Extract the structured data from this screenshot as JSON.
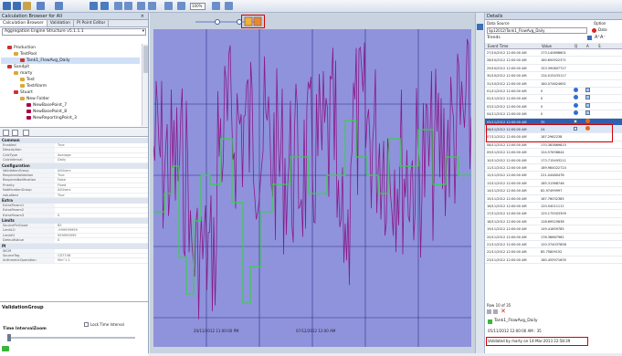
{
  "toolbar": {
    "zoom": "100%"
  },
  "left_panel": {
    "title": "Calculation Browser for All",
    "tabs": [
      "Calculation Browser",
      "Validation",
      "PI Point Editor"
    ],
    "selector": "Aggregation Engine Structure v5.1.1.1",
    "tree": [
      {
        "label": "Production",
        "indent": 1,
        "color": "#c33"
      },
      {
        "label": "TestPool",
        "indent": 2,
        "color": "#d9a93a"
      },
      {
        "label": "Tank1_FlowAvg_Daily",
        "indent": 3,
        "color": "#c33",
        "selected": true
      },
      {
        "label": "Sandpit",
        "indent": 1,
        "color": "#c33"
      },
      {
        "label": "marty",
        "indent": 2,
        "color": "#d9a93a"
      },
      {
        "label": "Test",
        "indent": 3,
        "color": "#d9a93a"
      },
      {
        "label": "TestAlarm",
        "indent": 3,
        "color": "#d9a93a"
      },
      {
        "label": "Stuart",
        "indent": 2,
        "color": "#c33"
      },
      {
        "label": "New Folder",
        "indent": 3,
        "color": "#d9a93a"
      },
      {
        "label": "NewBasePoint_7",
        "indent": 4,
        "color": "#a04"
      },
      {
        "label": "NewBasePoint_8",
        "indent": 4,
        "color": "#a04"
      },
      {
        "label": "NewReportingPoint_3",
        "indent": 4,
        "color": "#a04"
      }
    ],
    "properties": [
      {
        "cat": "Common"
      },
      {
        "k": "Enabled",
        "v": "True"
      },
      {
        "k": "Description",
        "v": ""
      },
      {
        "k": "CalcType",
        "v": "Average"
      },
      {
        "k": "CalcInterval",
        "v": "Daily"
      },
      {
        "cat": "Configuration"
      },
      {
        "k": "ValidationGroup",
        "v": "AllUsers"
      },
      {
        "k": "RequiresValidation",
        "v": "True"
      },
      {
        "k": "RequiresNotification",
        "v": "False"
      },
      {
        "k": "Priority",
        "v": "Fixed"
      },
      {
        "k": "NotificationGroup",
        "v": "AllUsers"
      },
      {
        "k": "isAudited",
        "v": "True"
      },
      {
        "cat": "Extra"
      },
      {
        "k": "ExtraParam1",
        "v": ""
      },
      {
        "k": "ExtraParam2",
        "v": ""
      },
      {
        "k": "ExtraParam3",
        "v": "0"
      },
      {
        "cat": "Limits"
      },
      {
        "k": "SourcePctGood",
        "v": "85"
      },
      {
        "k": "LimitLO",
        "v": "-999999999"
      },
      {
        "k": "LimitHI",
        "v": "999999999"
      },
      {
        "k": "DefaultValue",
        "v": "0"
      },
      {
        "cat": "PI"
      },
      {
        "k": "WCM",
        "v": ""
      },
      {
        "k": "SourceTag",
        "v": "CDT158"
      },
      {
        "k": "ArithmeticOperation",
        "v": "Min\"1.1"
      }
    ],
    "validation_group": "ValidationGroup",
    "time_interval_zoom": "Time IntervalZoom",
    "lock_time_interval": "Lock Time Interval"
  },
  "chart": {
    "start_label": "20/11/2012 11:00:00 PM",
    "end_label": "07/12/2012 12:00 AM"
  },
  "details": {
    "title": "Details",
    "data_source_label": "Data Source",
    "data_source_value": "Sp12012\\Tank1_FlowAvg_Daily",
    "option_label": "Option",
    "option_value": "Data",
    "trends_label": "Trends",
    "columns": [
      "Event Time",
      "Value",
      "Q",
      "A",
      "S"
    ],
    "rows": [
      {
        "time": "27/10/2012 12:00:00 AM",
        "value": "173.140898601"
      },
      {
        "time": "28/10/2012 12:00:00 AM",
        "value": "180.650922371"
      },
      {
        "time": "29/10/2012 12:00:00 AM",
        "value": "153.390807727"
      },
      {
        "time": "30/10/2012 12:00:00 AM",
        "value": "134.015433117"
      },
      {
        "time": "31/10/2012 12:00:00 AM",
        "value": "180.074624651"
      },
      {
        "time": "01/11/2012 12:00:00 AM",
        "value": "0",
        "status": true
      },
      {
        "time": "02/11/2012 12:00:00 AM",
        "value": "0",
        "status": true
      },
      {
        "time": "03/11/2012 12:00:00 AM",
        "value": "0",
        "status": true
      },
      {
        "time": "04/11/2012 12:00:00 AM",
        "value": "0",
        "status": true
      },
      {
        "time": "05/11/2012 12:00:00 AM",
        "value": "35",
        "selected": true
      },
      {
        "time": "06/11/2012 12:00:00 AM",
        "value": "24",
        "highlight": true
      },
      {
        "time": "07/11/2012 12:00:00 AM",
        "value": "187.2962238"
      },
      {
        "time": "08/11/2012 12:00:00 AM",
        "value": "170.383869815"
      },
      {
        "time": "09/11/2012 12:00:00 AM",
        "value": "124.57636644"
      },
      {
        "time": "10/11/2012 12:00:00 AM",
        "value": "173.715493211"
      },
      {
        "time": "11/11/2012 12:00:00 AM",
        "value": "189.984022724"
      },
      {
        "time": "12/11/2012 12:00:00 AM",
        "value": "221.04480478"
      },
      {
        "time": "13/11/2012 12:00:00 AM",
        "value": "185.31388746"
      },
      {
        "time": "14/11/2012 12:00:00 AM",
        "value": "82.97499997"
      },
      {
        "time": "15/11/2012 12:00:00 AM",
        "value": "187.76032385"
      },
      {
        "time": "16/11/2012 12:00:00 AM",
        "value": "120.54011111"
      },
      {
        "time": "17/11/2012 12:00:00 AM",
        "value": "125.175503309"
      },
      {
        "time": "18/11/2012 12:00:00 AM",
        "value": "128.69525638"
      },
      {
        "time": "19/11/2012 12:00:00 AM",
        "value": "149.41859785"
      },
      {
        "time": "20/11/2012 12:00:00 AM",
        "value": "176.36667962"
      },
      {
        "time": "21/11/2012 12:00:00 AM",
        "value": "120.374037858"
      },
      {
        "time": "22/11/2012 12:00:00 AM",
        "value": "85.75809152"
      },
      {
        "time": "23/11/2012 12:00:00 AM",
        "value": "180.455971635"
      }
    ],
    "row_count": "Row 10 of 35",
    "record_name": "Tank1_FlowAvg_Daily",
    "record_value_line": "05/11/2012 12:00:00 AM : 35",
    "validation_note": "Validated by marty on 14-Mar-2013 22:58:39"
  }
}
